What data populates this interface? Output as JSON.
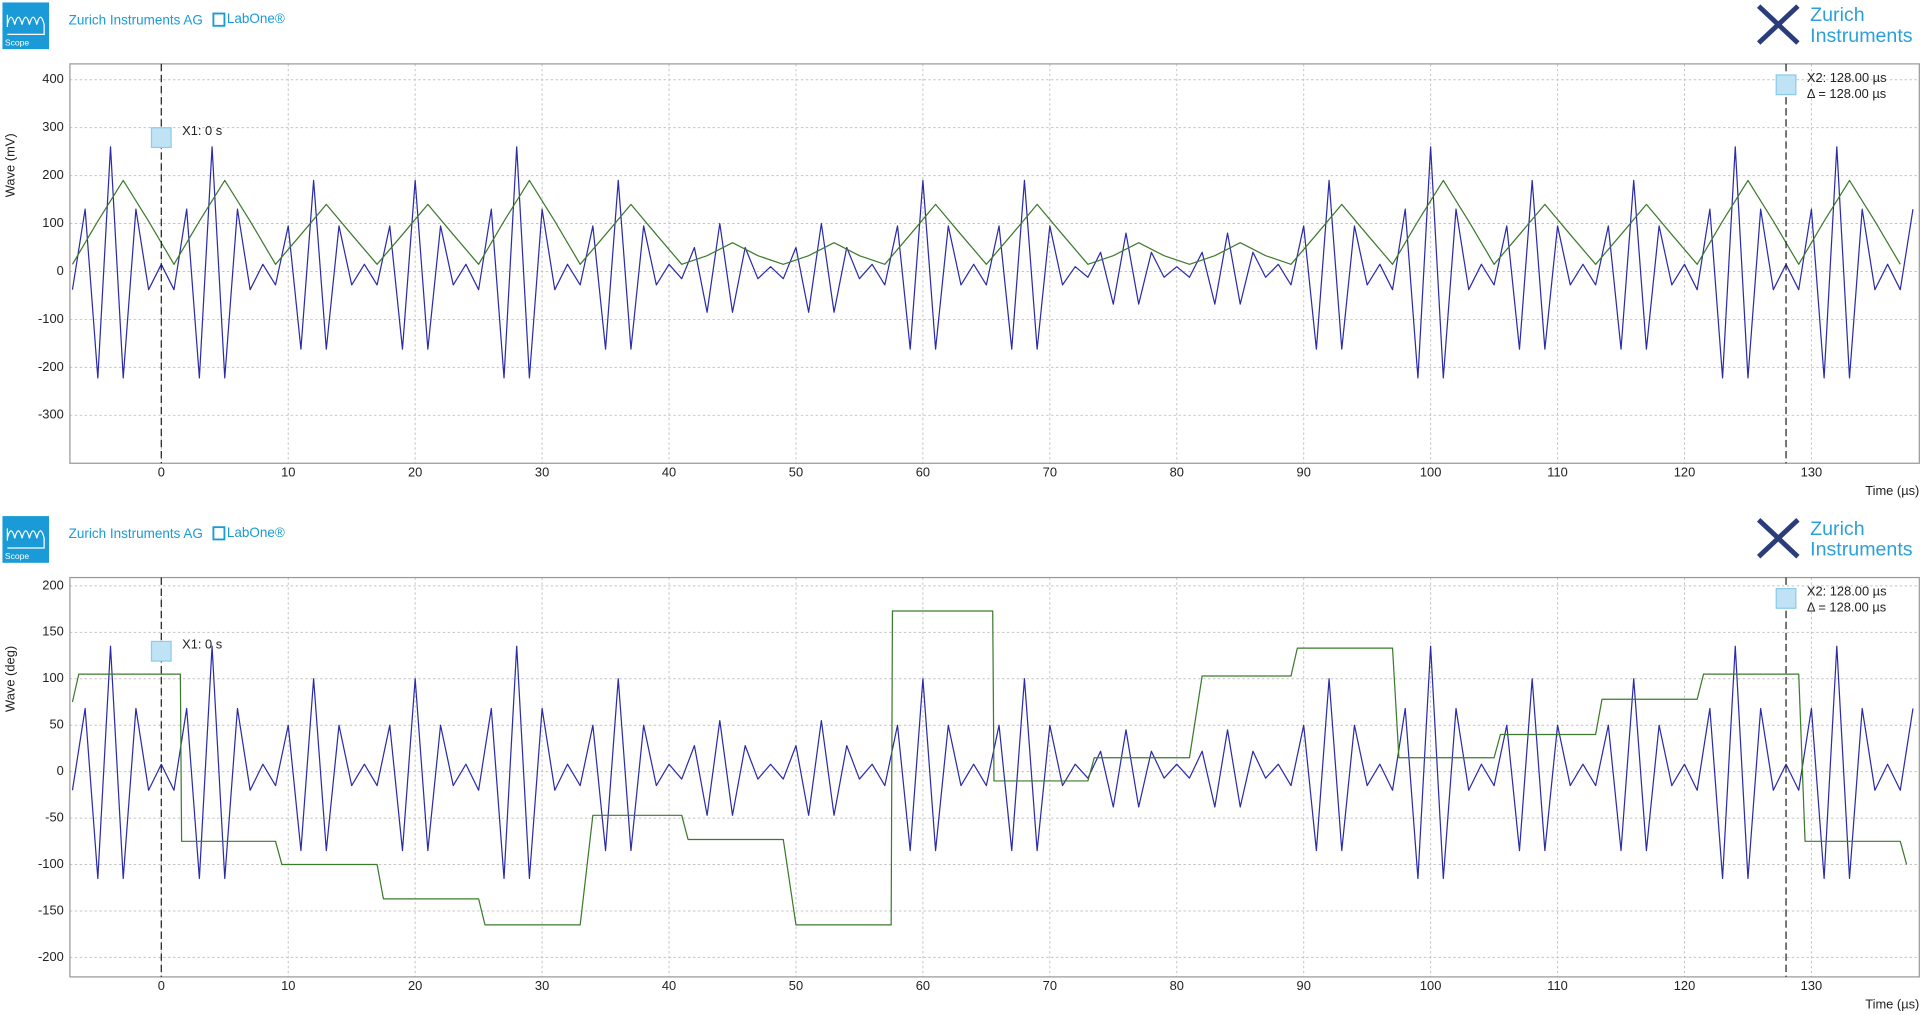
{
  "chart_data": [
    {
      "type": "line",
      "header": {
        "app": "Scope",
        "company": "Zurich Instruments AG",
        "product": "LabOne®",
        "logo": [
          "Zurich",
          "Instruments"
        ]
      },
      "y_label": "Wave (mV)",
      "x_label": "Time (µs)",
      "xlim": [
        -7.2,
        138.5
      ],
      "ylim": [
        -400,
        433
      ],
      "xticks": [
        0,
        10,
        20,
        30,
        40,
        50,
        60,
        70,
        80,
        90,
        100,
        110,
        120,
        130
      ],
      "yticks": [
        -300,
        -200,
        -100,
        0,
        100,
        200,
        300,
        400
      ],
      "grid": true,
      "cursors": [
        {
          "label": "X1: 0 s",
          "x": 0
        },
        {
          "label": "X2: 128.00 µs",
          "x": 128
        }
      ],
      "delta_label": "Δ = 128.00 µs",
      "series": [
        {
          "color": "#2c2ca8",
          "x": [
            -7,
            -6,
            -5,
            -4,
            -3,
            -2,
            -1,
            0,
            1,
            2,
            3,
            4,
            5,
            6,
            7,
            8,
            9,
            10,
            11,
            12,
            13,
            14,
            15,
            16,
            17,
            18,
            19,
            20,
            21,
            22,
            23,
            24,
            25,
            26,
            27,
            28,
            29,
            30,
            31,
            32,
            33,
            34,
            35,
            36,
            37,
            38,
            39,
            40,
            41,
            42,
            43,
            44,
            45,
            46,
            47,
            48,
            49,
            50,
            51,
            52,
            53,
            54,
            55,
            56,
            57,
            58,
            59,
            60,
            61,
            62,
            63,
            64,
            65,
            66,
            67,
            68,
            69,
            70,
            71,
            72,
            73,
            74,
            75,
            76,
            77,
            78,
            79,
            80,
            81,
            82,
            83,
            84,
            85,
            86,
            87,
            88,
            89,
            90,
            91,
            92,
            93,
            94,
            95,
            96,
            97,
            98,
            99,
            100,
            101,
            102,
            103,
            104,
            105,
            106,
            107,
            108,
            109,
            110,
            111,
            112,
            113,
            114,
            115,
            116,
            117,
            118,
            119,
            120,
            121,
            122,
            123,
            124,
            125,
            126,
            127,
            128,
            129,
            130,
            131,
            132,
            133,
            134,
            135,
            136,
            137,
            138
          ],
          "values": [
            -38,
            130,
            -222,
            260,
            -222,
            130,
            -38,
            15,
            -38,
            130,
            -222,
            260,
            -222,
            130,
            -38,
            15,
            -28,
            95,
            -162,
            190,
            -162,
            95,
            -28,
            15,
            -28,
            95,
            -162,
            190,
            -162,
            95,
            -28,
            15,
            -38,
            130,
            -222,
            260,
            -222,
            130,
            -38,
            15,
            -28,
            95,
            -162,
            190,
            -162,
            95,
            -28,
            15,
            -15,
            50,
            -85,
            100,
            -85,
            50,
            -15,
            10,
            -15,
            50,
            -85,
            100,
            -85,
            50,
            -15,
            15,
            -28,
            95,
            -162,
            190,
            -162,
            95,
            -28,
            15,
            -28,
            95,
            -162,
            190,
            -162,
            95,
            -28,
            10,
            -12,
            40,
            -68,
            80,
            -68,
            40,
            -12,
            10,
            -12,
            40,
            -68,
            80,
            -68,
            40,
            -12,
            15,
            -28,
            95,
            -162,
            190,
            -162,
            95,
            -28,
            15,
            -38,
            130,
            -222,
            260,
            -222,
            130,
            -38,
            15,
            -28,
            95,
            -162,
            190,
            -162,
            95,
            -28,
            15,
            -28,
            95,
            -162,
            190,
            -162,
            95,
            -28,
            15,
            -38,
            130,
            -222,
            260,
            -222,
            130,
            -38,
            15,
            -38,
            130,
            -222,
            260,
            -222,
            130,
            -38,
            15,
            -38,
            130
          ]
        },
        {
          "color": "#3c7a2c",
          "x": [
            -7,
            -5,
            -3,
            -1,
            1,
            3,
            5,
            7,
            9,
            11,
            13,
            15,
            17,
            19,
            21,
            23,
            25,
            27,
            29,
            31,
            33,
            35,
            37,
            39,
            41,
            43,
            45,
            47,
            49,
            51,
            53,
            55,
            57,
            59,
            61,
            63,
            65,
            67,
            69,
            71,
            73,
            75,
            77,
            79,
            81,
            83,
            85,
            87,
            89,
            91,
            93,
            95,
            97,
            99,
            101,
            103,
            105,
            107,
            109,
            111,
            113,
            115,
            117,
            119,
            121,
            123,
            125,
            127,
            129,
            131,
            133,
            135,
            137
          ],
          "values": [
            15,
            105,
            190,
            105,
            15,
            105,
            190,
            105,
            15,
            77,
            140,
            77,
            15,
            77,
            140,
            77,
            15,
            105,
            190,
            105,
            15,
            77,
            140,
            77,
            15,
            33,
            60,
            33,
            15,
            33,
            60,
            33,
            15,
            77,
            140,
            77,
            15,
            77,
            140,
            77,
            15,
            33,
            60,
            33,
            15,
            33,
            60,
            33,
            15,
            77,
            140,
            77,
            15,
            105,
            190,
            105,
            15,
            77,
            140,
            77,
            15,
            77,
            140,
            77,
            15,
            105,
            190,
            105,
            15,
            105,
            190,
            105,
            15
          ]
        }
      ]
    },
    {
      "type": "line",
      "header": {
        "app": "Scope",
        "company": "Zurich Instruments AG",
        "product": "LabOne®",
        "logo": [
          "Zurich",
          "Instruments"
        ]
      },
      "y_label": "Wave (deg)",
      "x_label": "Time (µs)",
      "xlim": [
        -7.2,
        138.5
      ],
      "ylim": [
        -221,
        209
      ],
      "xticks": [
        0,
        10,
        20,
        30,
        40,
        50,
        60,
        70,
        80,
        90,
        100,
        110,
        120,
        130
      ],
      "yticks": [
        -200,
        -150,
        -100,
        -50,
        0,
        50,
        100,
        150,
        200
      ],
      "grid": true,
      "cursors": [
        {
          "label": "X1: 0 s",
          "x": 0
        },
        {
          "label": "X2: 128.00 µs",
          "x": 128
        }
      ],
      "delta_label": "Δ = 128.00 µs",
      "series": [
        {
          "color": "#2c2ca8",
          "x": [
            -7,
            -6,
            -5,
            -4,
            -3,
            -2,
            -1,
            0,
            1,
            2,
            3,
            4,
            5,
            6,
            7,
            8,
            9,
            10,
            11,
            12,
            13,
            14,
            15,
            16,
            17,
            18,
            19,
            20,
            21,
            22,
            23,
            24,
            25,
            26,
            27,
            28,
            29,
            30,
            31,
            32,
            33,
            34,
            35,
            36,
            37,
            38,
            39,
            40,
            41,
            42,
            43,
            44,
            45,
            46,
            47,
            48,
            49,
            50,
            51,
            52,
            53,
            54,
            55,
            56,
            57,
            58,
            59,
            60,
            61,
            62,
            63,
            64,
            65,
            66,
            67,
            68,
            69,
            70,
            71,
            72,
            73,
            74,
            75,
            76,
            77,
            78,
            79,
            80,
            81,
            82,
            83,
            84,
            85,
            86,
            87,
            88,
            89,
            90,
            91,
            92,
            93,
            94,
            95,
            96,
            97,
            98,
            99,
            100,
            101,
            102,
            103,
            104,
            105,
            106,
            107,
            108,
            109,
            110,
            111,
            112,
            113,
            114,
            115,
            116,
            117,
            118,
            119,
            120,
            121,
            122,
            123,
            124,
            125,
            126,
            127,
            128,
            129,
            130,
            131,
            132,
            133,
            134,
            135,
            136,
            137,
            138
          ],
          "values": [
            -20,
            68,
            -115,
            135,
            -115,
            68,
            -20,
            8,
            -20,
            68,
            -115,
            135,
            -115,
            68,
            -20,
            8,
            -15,
            50,
            -85,
            100,
            -85,
            50,
            -15,
            8,
            -15,
            50,
            -85,
            100,
            -85,
            50,
            -15,
            8,
            -20,
            68,
            -115,
            135,
            -115,
            68,
            -20,
            8,
            -15,
            50,
            -85,
            100,
            -85,
            50,
            -15,
            8,
            -8,
            28,
            -47,
            55,
            -47,
            28,
            -8,
            8,
            -8,
            28,
            -47,
            55,
            -47,
            28,
            -8,
            8,
            -15,
            50,
            -85,
            100,
            -85,
            50,
            -15,
            8,
            -15,
            50,
            -85,
            100,
            -85,
            50,
            -15,
            8,
            -7,
            22,
            -38,
            45,
            -38,
            22,
            -7,
            8,
            -7,
            22,
            -38,
            45,
            -38,
            22,
            -7,
            8,
            -15,
            50,
            -85,
            100,
            -85,
            50,
            -15,
            8,
            -20,
            68,
            -115,
            135,
            -115,
            68,
            -20,
            8,
            -15,
            50,
            -85,
            100,
            -85,
            50,
            -15,
            8,
            -15,
            50,
            -85,
            100,
            -85,
            50,
            -15,
            8,
            -20,
            68,
            -115,
            135,
            -115,
            68,
            -20,
            8,
            -20,
            68,
            -115,
            135,
            -115,
            68,
            -20,
            8,
            -20,
            68
          ]
        },
        {
          "color": "#3c7a2c",
          "x": [
            -7,
            -6.5,
            1.5,
            1.6,
            9,
            9.5,
            17,
            17.5,
            25,
            25.5,
            33,
            34,
            41,
            41.5,
            49,
            50,
            57.5,
            57.6,
            65.5,
            65.6,
            73,
            73.5,
            81,
            82,
            89,
            89.5,
            97,
            97.5,
            105,
            105.5,
            113,
            113.5,
            121,
            121.5,
            129,
            129.5,
            137,
            137.5
          ],
          "values": [
            75,
            105,
            105,
            -75,
            -75,
            -100,
            -100,
            -137,
            -137,
            -165,
            -165,
            -47,
            -47,
            -73,
            -73,
            -165,
            -165,
            173,
            173,
            -10,
            -10,
            15,
            15,
            103,
            103,
            133,
            133,
            15,
            15,
            40,
            40,
            78,
            78,
            105,
            105,
            -75,
            -75,
            -100
          ]
        }
      ]
    }
  ]
}
